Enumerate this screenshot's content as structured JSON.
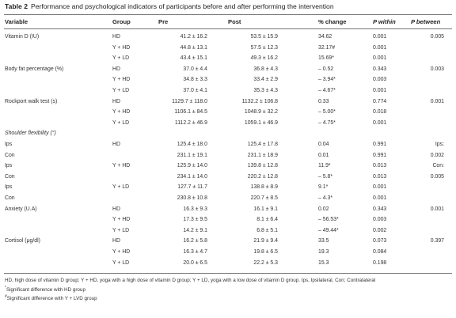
{
  "table": {
    "label": "Table 2",
    "title": "Performance and psychological indicators of participants before and after performing the intervention",
    "headers": [
      "Variable",
      "Group",
      "Pre",
      "Post",
      "% change",
      "P within",
      "P between"
    ],
    "rows": [
      {
        "variable": "Vitamin D (IU)",
        "group": "HD",
        "pre": "41.2 ± 16.2",
        "post": "53.5 ± 15.9",
        "pct": "34.62",
        "pwithin": "0.001",
        "pbetween": "0.005"
      },
      {
        "variable": "",
        "group": "Y + HD",
        "pre": "44.8 ± 13.1",
        "post": "57.5 ± 12.3",
        "pct": "32.17#",
        "pwithin": "0.001",
        "pbetween": ""
      },
      {
        "variable": "",
        "group": "Y + LD",
        "pre": "43.4 ± 15.1",
        "post": "49.3 ± 16.2",
        "pct": "15.69*",
        "pwithin": "0.001",
        "pbetween": ""
      },
      {
        "variable": "Body fat percentage (%)",
        "group": "HD",
        "pre": "37.0 ± 4.4",
        "post": "36.8 ± 4.3",
        "pct": "– 0.52",
        "pwithin": "0.343",
        "pbetween": "0.003"
      },
      {
        "variable": "",
        "group": "Y + HD",
        "pre": "34.8 ± 3.3",
        "post": "33.4 ± 2.9",
        "pct": "– 3.94*",
        "pwithin": "0.003",
        "pbetween": ""
      },
      {
        "variable": "",
        "group": "Y + LD",
        "pre": "37.0 ± 4.1",
        "post": "35.3 ± 4.3",
        "pct": "– 4.67*",
        "pwithin": "0.001",
        "pbetween": ""
      },
      {
        "variable": "Rockport walk test (s)",
        "group": "HD",
        "pre": "1129.7 ± 118.0",
        "post": "1132.2 ± 106.8",
        "pct": "0.33",
        "pwithin": "0.774",
        "pbetween": "0.001"
      },
      {
        "variable": "",
        "group": "Y + HD",
        "pre": "1106.1 ± 84.5",
        "post": "1048.9 ± 32.2",
        "pct": "– 5.00*",
        "pwithin": "0.018",
        "pbetween": ""
      },
      {
        "variable": "",
        "group": "Y + LD",
        "pre": "1112.2 ± 46.9",
        "post": "1059.1 ± 46.9",
        "pct": "– 4.75*",
        "pwithin": "0.001",
        "pbetween": ""
      },
      {
        "variable": "Shoulder flexibility (°)",
        "italic": true,
        "group": "",
        "pre": "",
        "post": "",
        "pct": "",
        "pwithin": "",
        "pbetween": ""
      },
      {
        "variable": "Ips",
        "group": "HD",
        "pre": "125.4 ± 18.0",
        "post": "125.4 ± 17.8",
        "pct": "0.04",
        "pwithin": "0.991",
        "pbetween": "Ips:"
      },
      {
        "variable": "Con",
        "group": "",
        "pre": "231.1 ± 19.1",
        "post": "231.1 ± 18.9",
        "pct": "0.01",
        "pwithin": "0.991",
        "pbetween": "0.002"
      },
      {
        "variable": "Ips",
        "group": "Y + HD",
        "pre": "125.9 ± 14.0",
        "post": "139.8 ± 12.8",
        "pct": "11.9*",
        "pwithin": "0.013",
        "pbetween": "Con:"
      },
      {
        "variable": "Con",
        "group": "",
        "pre": "234.1 ± 14.0",
        "post": "220.2 ± 12.8",
        "pct": "– 5.8*",
        "pwithin": "0.013",
        "pbetween": "0.005"
      },
      {
        "variable": "Ips",
        "group": "Y + LD",
        "pre": "127.7 ± 11.7",
        "post": "138.8 ± 8.9",
        "pct": "9.1*",
        "pwithin": "0.001",
        "pbetween": ""
      },
      {
        "variable": "Con",
        "group": "",
        "pre": "230.8 ± 10.8",
        "post": "220.7 ± 8.5",
        "pct": "– 4.3*",
        "pwithin": "0.001",
        "pbetween": ""
      },
      {
        "variable": "Anxiety (U.A)",
        "group": "HD",
        "pre": "16.3 ± 9.3",
        "post": "16.1 ± 9.1",
        "pct": "0.02",
        "pwithin": "0.343",
        "pbetween": "0.001"
      },
      {
        "variable": "",
        "group": "Y + HD",
        "pre": "17.3 ± 9.5",
        "post": "8.1 ± 6.4",
        "pct": "– 56.53*",
        "pwithin": "0.003",
        "pbetween": ""
      },
      {
        "variable": "",
        "group": "Y + LD",
        "pre": "14.2 ± 9.1",
        "post": "6.8 ± 5.1",
        "pct": "– 49.44*",
        "pwithin": "0.002",
        "pbetween": ""
      },
      {
        "variable": "Cortisol (μg/dl)",
        "group": "HD",
        "pre": "16.2 ± 5.8",
        "post": "21.9 ± 9.4",
        "pct": "33.5",
        "pwithin": "0.073",
        "pbetween": "0.397"
      },
      {
        "variable": "",
        "group": "Y + HD",
        "pre": "16.3 ± 4.7",
        "post": "19.8 ± 6.5",
        "pct": "19.3",
        "pwithin": "0.084",
        "pbetween": ""
      },
      {
        "variable": "",
        "group": "Y + LD",
        "pre": "20.0 ± 6.5",
        "post": "22.2 ± 5.3",
        "pct": "15.3",
        "pwithin": "0.198",
        "pbetween": ""
      }
    ]
  },
  "footnotes": {
    "abbrev": "HD, high dose of vitamin D group; Y + HD, yoga with a high dose of vitamin D group; Y + LD, yoga with a low dose of vitamin D group. Ips, Ipsilateral, Con; Contralateral",
    "note1_symbol": "*",
    "note1": "Significant difference with HD group",
    "note2_symbol": "#",
    "note2": "Significant difference with Y + LVD group"
  }
}
